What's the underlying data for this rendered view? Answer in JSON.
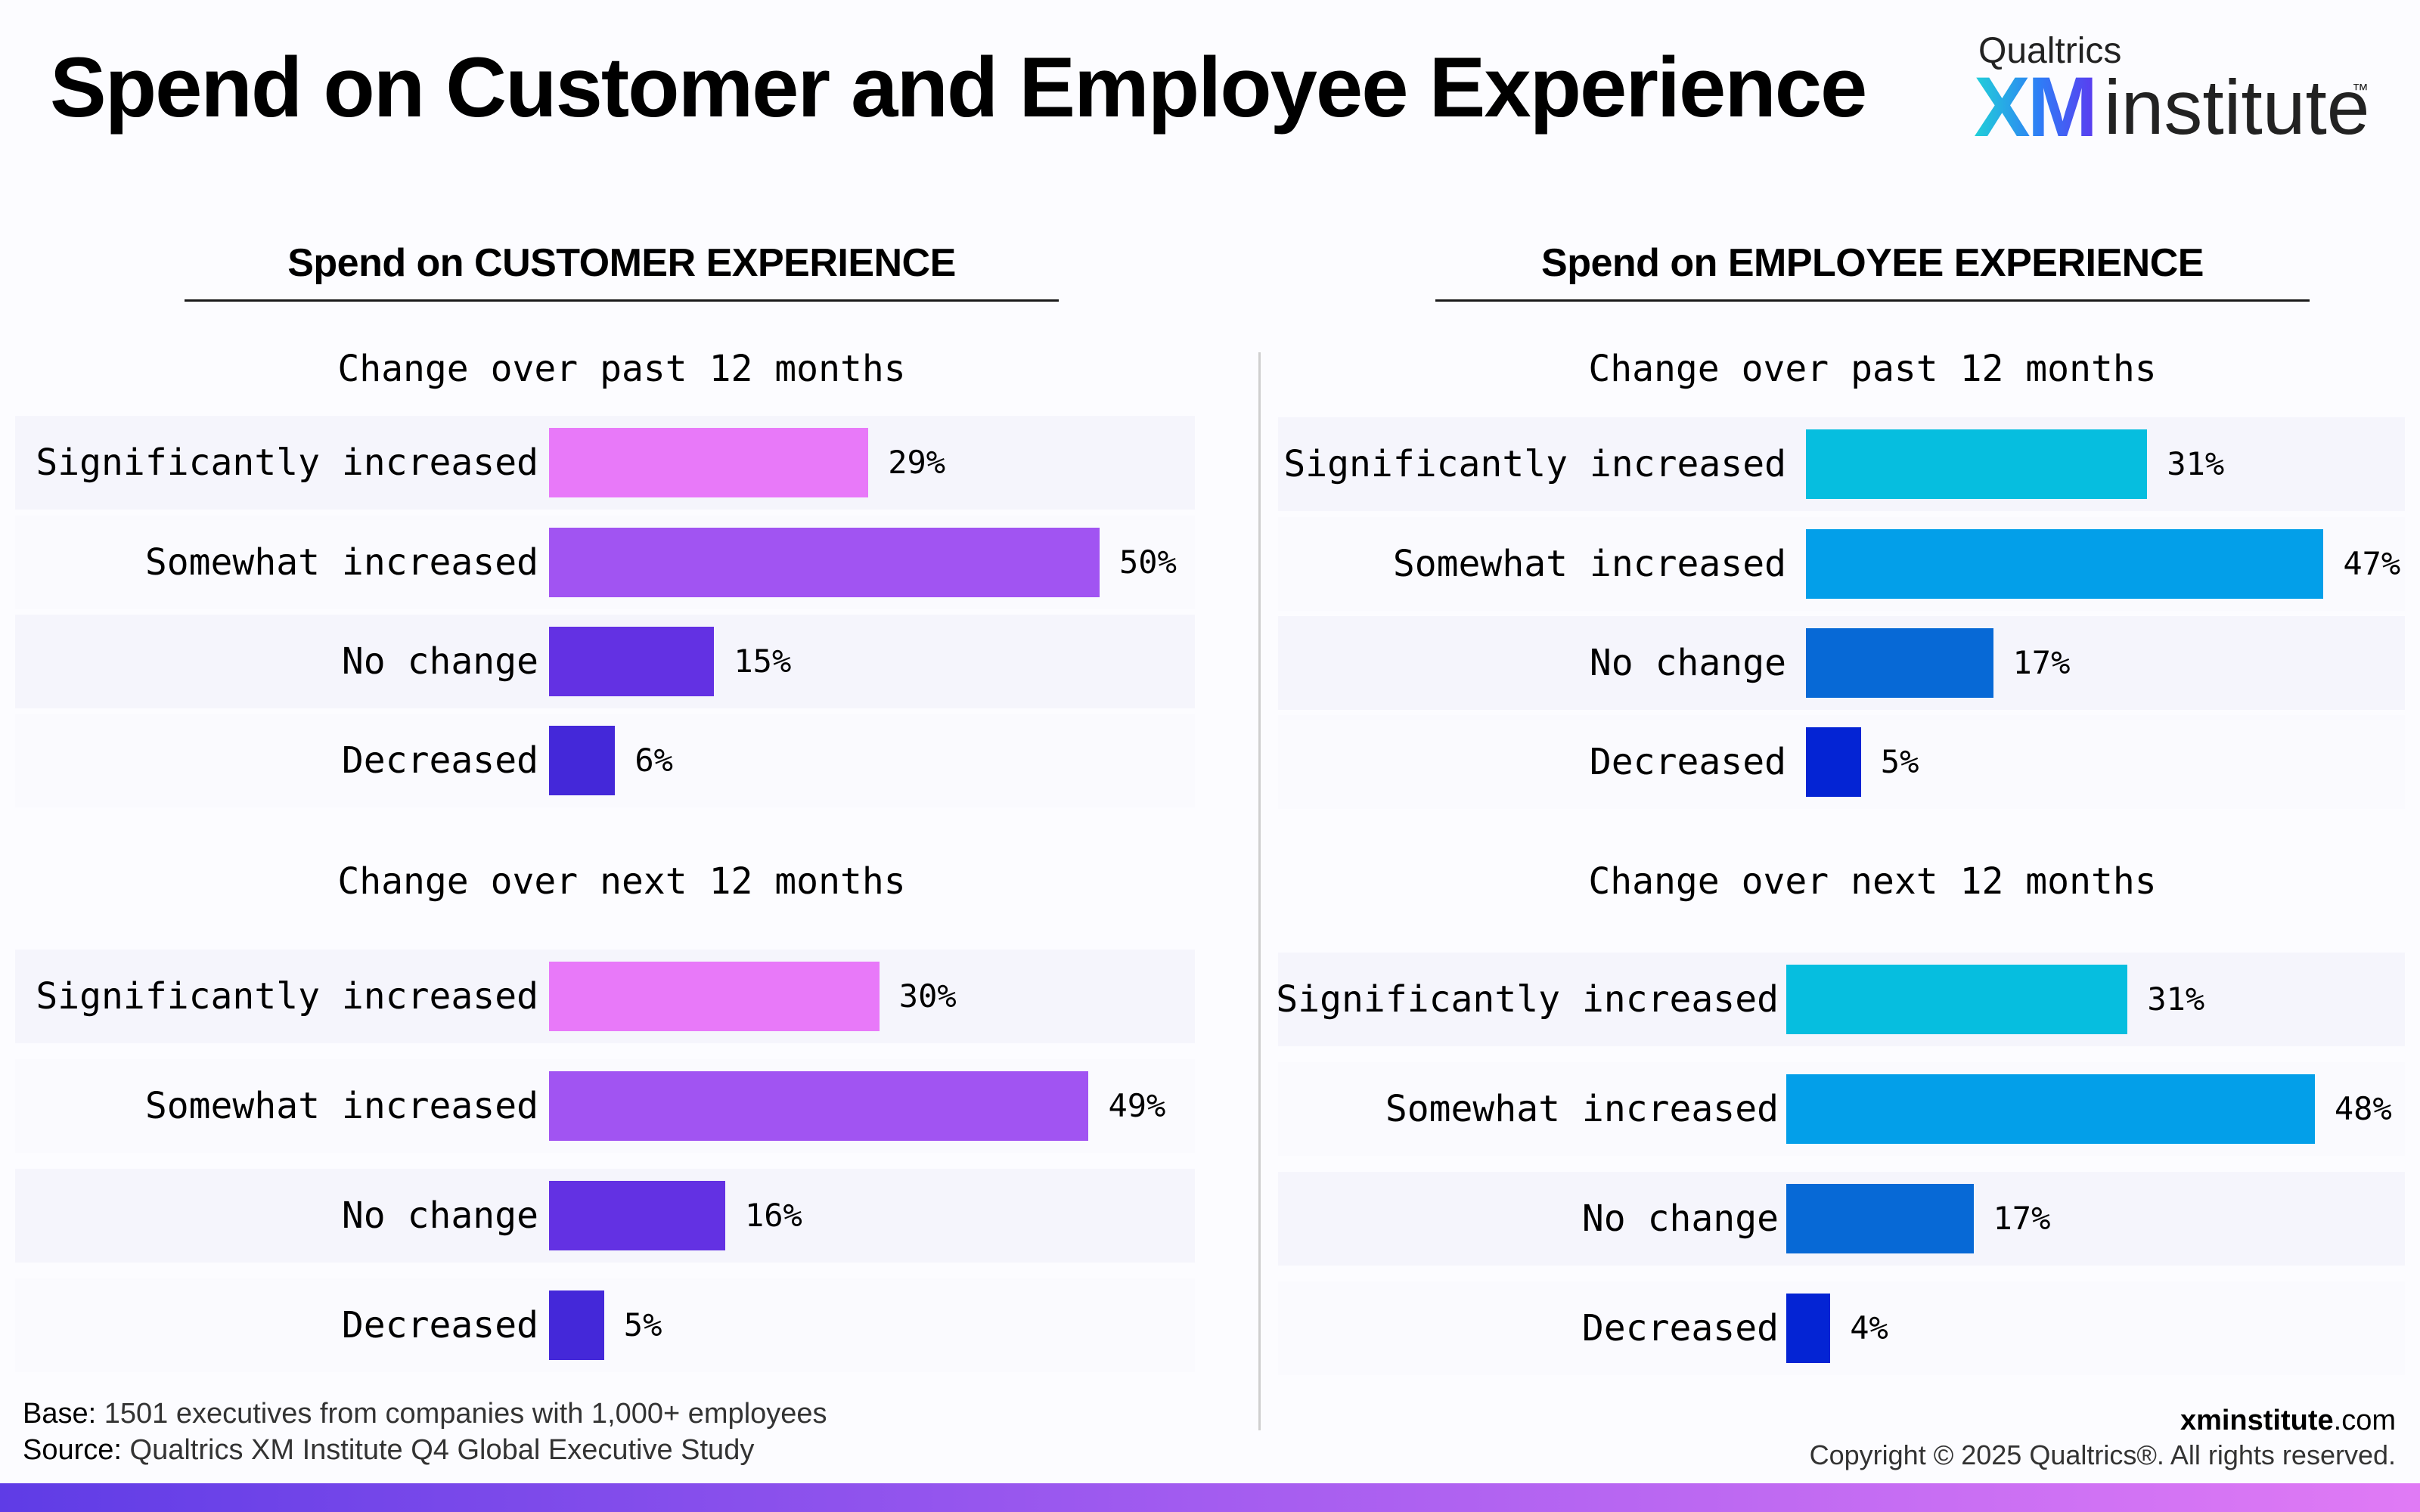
{
  "title": "Spend on Customer and Employee Experience",
  "logo": {
    "brand": "Qualtrics",
    "xm": "XM",
    "institute": "institute",
    "tm": "™"
  },
  "colors": {
    "customer": [
      "#e879f9",
      "#a154f2",
      "#6331e3",
      "#4428d9"
    ],
    "employee": [
      "#06bedf",
      "#039fe9",
      "#0769d6",
      "#0424d4"
    ]
  },
  "chart_data": [
    {
      "type": "bar",
      "orientation": "horizontal",
      "title": "Spend on CUSTOMER EXPERIENCE",
      "subtitle": "Change over past 12 months",
      "categories": [
        "Significantly increased",
        "Somewhat increased",
        "No change",
        "Decreased"
      ],
      "values": [
        29,
        50,
        15,
        6
      ],
      "data_labels": [
        "29%",
        "50%",
        "15%",
        "6%"
      ]
    },
    {
      "type": "bar",
      "orientation": "horizontal",
      "title": "Spend on CUSTOMER EXPERIENCE",
      "subtitle": "Change over next 12 months",
      "categories": [
        "Significantly increased",
        "Somewhat increased",
        "No change",
        "Decreased"
      ],
      "values": [
        30,
        49,
        16,
        5
      ],
      "data_labels": [
        "30%",
        "49%",
        "16%",
        "5%"
      ]
    },
    {
      "type": "bar",
      "orientation": "horizontal",
      "title": "Spend on EMPLOYEE EXPERIENCE",
      "subtitle": "Change over past 12 months",
      "categories": [
        "Significantly increased",
        "Somewhat increased",
        "No change",
        "Decreased"
      ],
      "values": [
        31,
        47,
        17,
        5
      ],
      "data_labels": [
        "31%",
        "47%",
        "17%",
        "5%"
      ]
    },
    {
      "type": "bar",
      "orientation": "horizontal",
      "title": "Spend on EMPLOYEE EXPERIENCE",
      "subtitle": "Change over next 12 months",
      "categories": [
        "Significantly increased",
        "Somewhat increased",
        "No change",
        "Decreased"
      ],
      "values": [
        31,
        48,
        17,
        4
      ],
      "data_labels": [
        "31%",
        "48%",
        "17%",
        "4%"
      ]
    }
  ],
  "footer": {
    "base_label": "Base:",
    "base_text": " 1501 executives from companies with 1,000+ employees",
    "source_label": "Source:",
    "source_text": " Qualtrics XM Institute Q4 Global Executive Study",
    "site": "xminstitute",
    "site_suffix": ".com",
    "copyright": "Copyright © 2025 Qualtrics®. All rights reserved."
  }
}
